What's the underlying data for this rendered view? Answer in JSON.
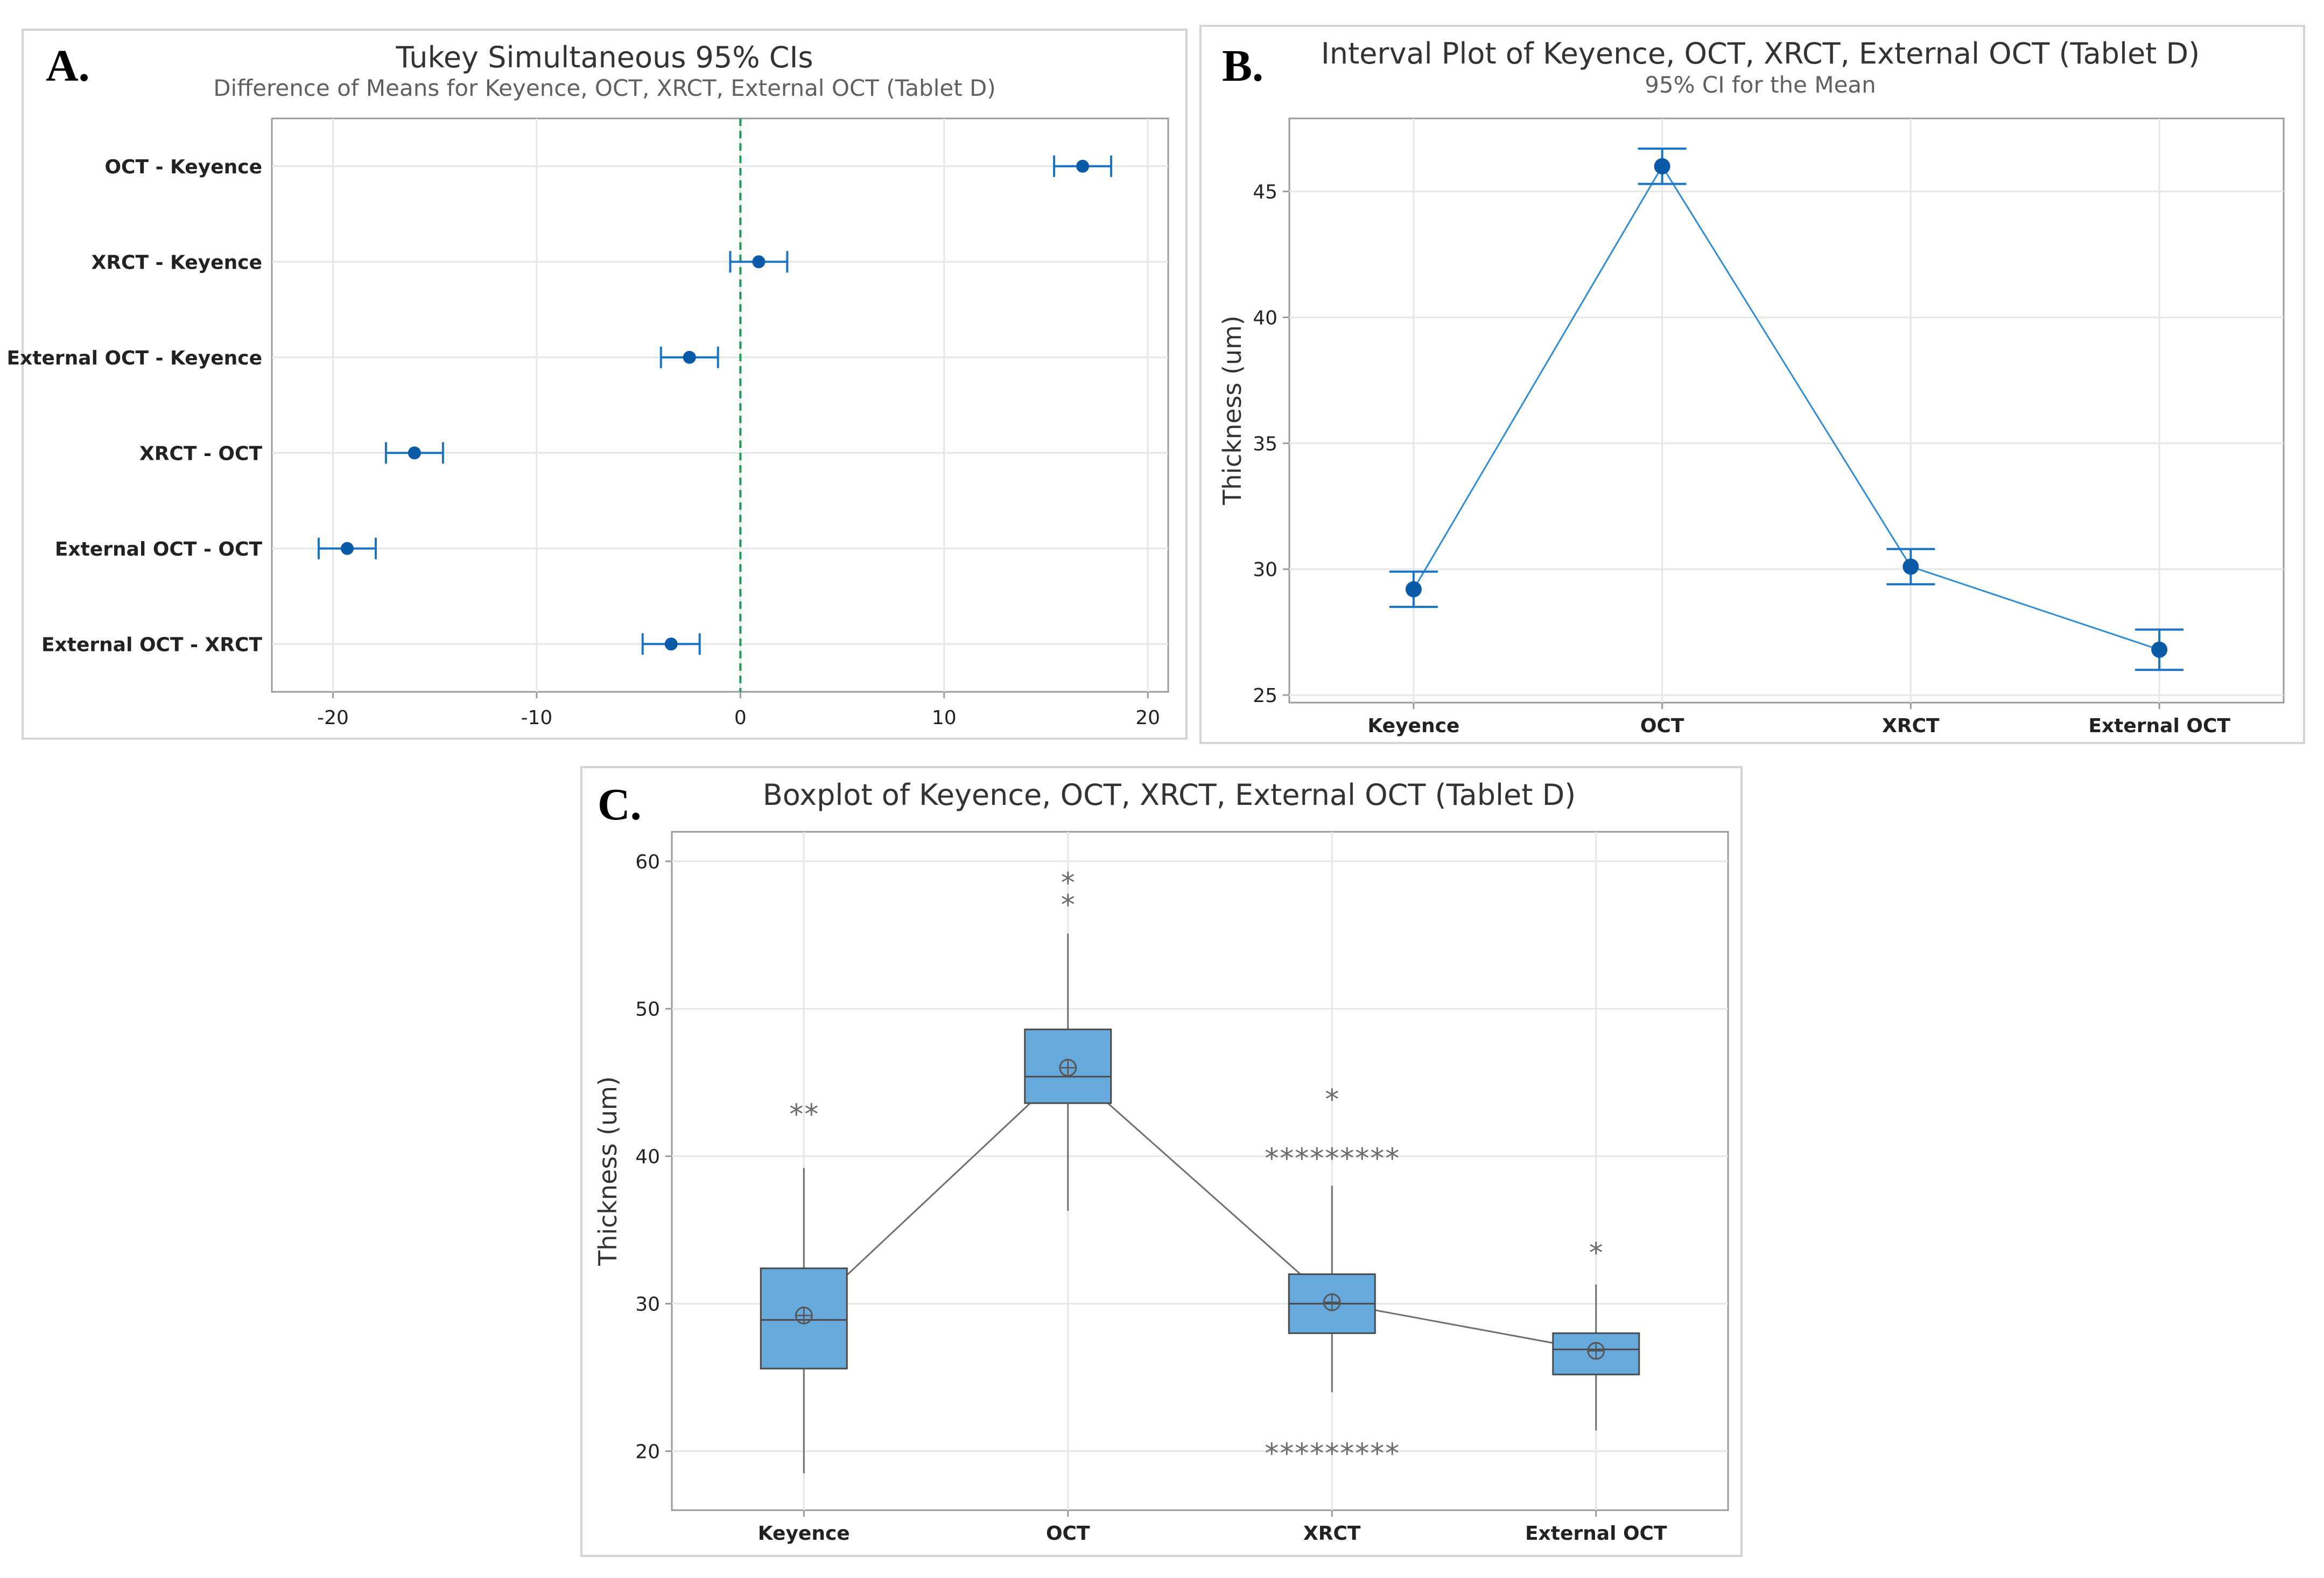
{
  "figure": {
    "panels": [
      {
        "letter": "A.",
        "title": "Tukey Simultaneous 95% CIs",
        "subtitle": "Difference of Means for Keyence, OCT, XRCT, External OCT (Tablet D)"
      },
      {
        "letter": "B.",
        "title": "Interval Plot of Keyence, OCT, XRCT, External OCT (Tablet D)",
        "subtitle": "95% CI for the Mean"
      },
      {
        "letter": "C.",
        "title": "Boxplot of Keyence, OCT, XRCT, External OCT (Tablet D)",
        "subtitle": ""
      }
    ]
  },
  "colors": {
    "marker": "#0b5aa8",
    "errorbar": "#1a73c2",
    "line": "#2e8bd4",
    "refline": "#1e9b57",
    "box_fill": "#66aadd",
    "box_stroke": "#4a4a4a"
  },
  "chart_data": [
    {
      "type": "scatter",
      "title": "Tukey Simultaneous 95% CIs",
      "subtitle": "Difference of Means for Keyence, OCT, XRCT, External OCT (Tablet D)",
      "xlabel": "",
      "ylabel": "",
      "orientation": "horizontal-intervals",
      "categories": [
        "OCT - Keyence",
        "XRCT - Keyence",
        "External OCT - Keyence",
        "XRCT - OCT",
        "External OCT - OCT",
        "External OCT - XRCT"
      ],
      "values": [
        16.8,
        0.9,
        -2.5,
        -16.0,
        -19.3,
        -3.4
      ],
      "lower": [
        15.4,
        -0.5,
        -3.9,
        -17.4,
        -20.7,
        -4.8
      ],
      "upper": [
        18.2,
        2.3,
        -1.1,
        -14.6,
        -17.9,
        -2.0
      ],
      "xlim": [
        -23,
        21
      ],
      "xticks": [
        -20,
        -10,
        0,
        10,
        20
      ],
      "reference_line": 0,
      "grid": true
    },
    {
      "type": "line",
      "title": "Interval Plot of Keyence, OCT, XRCT, External OCT (Tablet D)",
      "subtitle": "95% CI for the Mean",
      "xlabel": "",
      "ylabel": "Thickness (um)",
      "categories": [
        "Keyence",
        "OCT",
        "XRCT",
        "External OCT"
      ],
      "values": [
        29.2,
        46.0,
        30.1,
        26.8
      ],
      "lower": [
        28.5,
        45.3,
        29.4,
        26.0
      ],
      "upper": [
        29.9,
        46.7,
        30.8,
        27.6
      ],
      "ylim": [
        24.7,
        47.9
      ],
      "yticks": [
        25,
        30,
        35,
        40,
        45
      ],
      "grid": true
    },
    {
      "type": "box",
      "title": "Boxplot of Keyence, OCT, XRCT, External OCT (Tablet D)",
      "xlabel": "",
      "ylabel": "Thickness (um)",
      "categories": [
        "Keyence",
        "OCT",
        "XRCT",
        "External OCT"
      ],
      "boxes": [
        {
          "whisker_low": 18.5,
          "q1": 25.6,
          "median": 28.9,
          "q3": 32.4,
          "whisker_high": 39.2,
          "mean": 29.2,
          "outliers": [
            43,
            43
          ]
        },
        {
          "whisker_low": 36.3,
          "q1": 43.6,
          "median": 45.4,
          "q3": 48.6,
          "whisker_high": 55.1,
          "mean": 46.0,
          "outliers": [
            57.2,
            58.7
          ]
        },
        {
          "whisker_low": 24.0,
          "q1": 28.0,
          "median": 30.0,
          "q3": 32.0,
          "whisker_high": 38.0,
          "mean": 30.1,
          "outliers": [
            44,
            40,
            40,
            40,
            40,
            40,
            40,
            40,
            40,
            40,
            20,
            20,
            20,
            20,
            20,
            20,
            20,
            20,
            20
          ]
        },
        {
          "whisker_low": 21.4,
          "q1": 25.2,
          "median": 26.9,
          "q3": 28.0,
          "whisker_high": 31.3,
          "mean": 26.8,
          "outliers": [
            33.6
          ]
        }
      ],
      "ylim": [
        16,
        62
      ],
      "yticks": [
        20,
        30,
        40,
        50,
        60
      ],
      "grid": true
    }
  ]
}
